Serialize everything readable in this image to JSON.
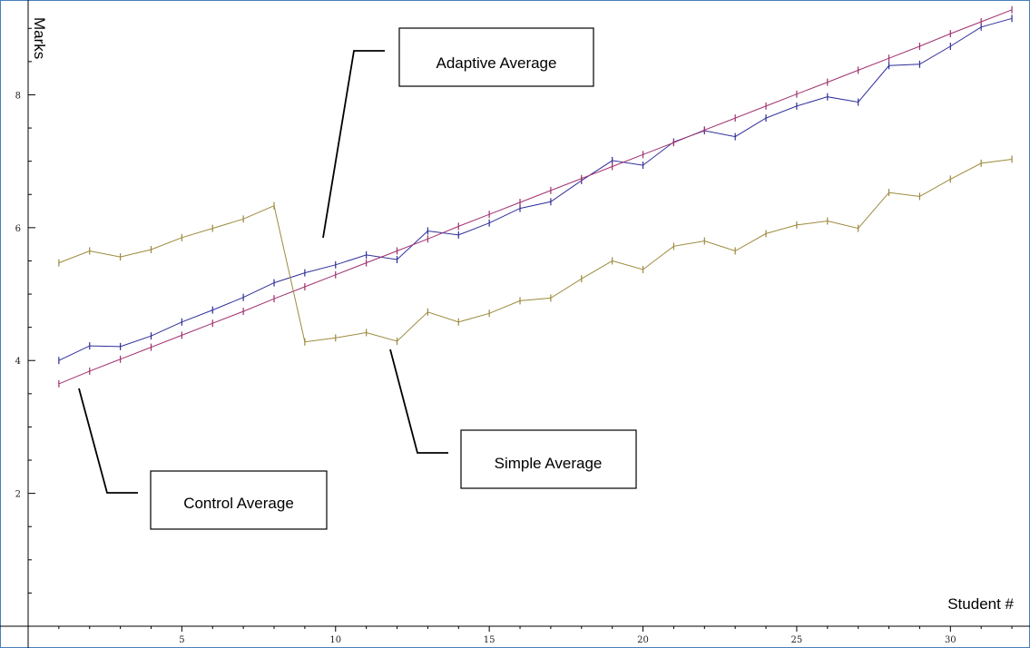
{
  "chart_data": {
    "type": "line",
    "xlabel": "Student #",
    "ylabel": "Marks",
    "xlim": [
      0,
      32.5
    ],
    "ylim": [
      0,
      9.4
    ],
    "xticks": [
      5,
      10,
      15,
      20,
      25,
      30
    ],
    "yticks": [
      2,
      4,
      6,
      8
    ],
    "grid": false,
    "x": [
      1,
      2,
      3,
      4,
      5,
      6,
      7,
      8,
      9,
      10,
      11,
      12,
      13,
      14,
      15,
      16,
      17,
      18,
      19,
      20,
      21,
      22,
      23,
      24,
      25,
      26,
      27,
      28,
      29,
      30,
      31,
      32
    ],
    "series": [
      {
        "name": "Adaptive Average",
        "color": "#2e2e9a",
        "values": [
          4.0,
          4.22,
          4.21,
          4.37,
          4.58,
          4.76,
          4.95,
          5.17,
          5.32,
          5.44,
          5.59,
          5.52,
          5.95,
          5.89,
          6.07,
          6.29,
          6.39,
          6.71,
          7.01,
          6.94,
          7.29,
          7.46,
          7.37,
          7.65,
          7.83,
          7.97,
          7.89,
          8.44,
          8.46,
          8.73,
          9.02,
          9.15
        ]
      },
      {
        "name": "Control Average",
        "color": "#a0306e",
        "values": [
          3.65,
          3.84,
          4.02,
          4.2,
          4.38,
          4.56,
          4.74,
          4.93,
          5.11,
          5.29,
          5.47,
          5.65,
          5.83,
          6.02,
          6.2,
          6.38,
          6.56,
          6.74,
          6.92,
          7.1,
          7.28,
          7.47,
          7.65,
          7.83,
          8.01,
          8.19,
          8.37,
          8.55,
          8.73,
          8.92,
          9.1,
          9.28
        ]
      },
      {
        "name": "Simple Average",
        "color": "#9b8a3c",
        "values": [
          5.47,
          5.65,
          5.56,
          5.67,
          5.85,
          5.99,
          6.13,
          6.33,
          4.28,
          4.34,
          4.42,
          4.29,
          4.73,
          4.58,
          4.71,
          4.9,
          4.94,
          5.23,
          5.5,
          5.37,
          5.72,
          5.8,
          5.65,
          5.91,
          6.04,
          6.1,
          5.99,
          6.53,
          6.47,
          6.73,
          6.97,
          7.03
        ]
      }
    ]
  },
  "callouts": {
    "adaptive": "Adaptive Average",
    "simple": "Simple Average",
    "control": "Control Average"
  }
}
